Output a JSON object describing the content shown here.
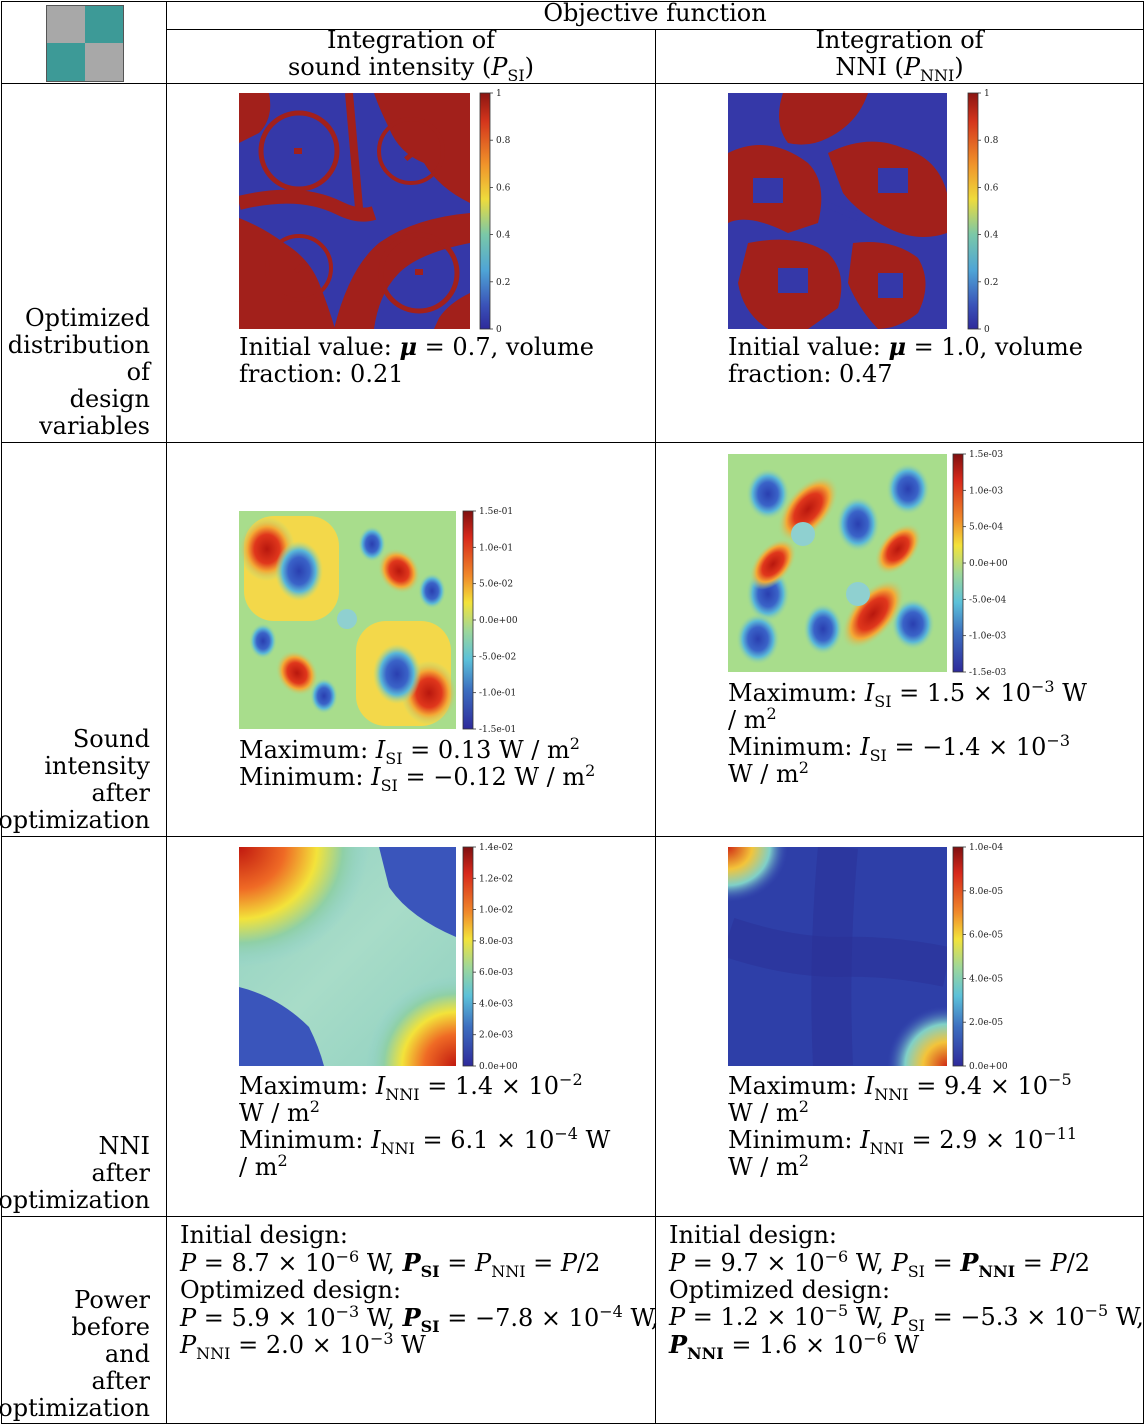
{
  "header": {
    "objective_function": "Objective function",
    "col1_line1": "Integration of",
    "col1_line2": "sound intensity (",
    "col1_sym": "P",
    "col1_sub": "SI",
    "col2_line1": "Integration of",
    "col2_line2": "NNI (",
    "col2_sym": "P",
    "col2_sub": "NNI",
    "close_paren": ")"
  },
  "rows": {
    "r1": [
      "Optimized",
      "distribution",
      "of",
      "design",
      "variables"
    ],
    "r2": [
      "Sound",
      "intensity",
      "after",
      "optimization"
    ],
    "r3": [
      "NNI",
      "after",
      "optimization"
    ],
    "r4": [
      "Power",
      "before",
      "and",
      "after",
      "optimization"
    ]
  },
  "colorbars": {
    "design": [
      "1",
      "0.8",
      "0.6",
      "0.4",
      "0.2",
      "0"
    ],
    "si_left": [
      "1.5e-01",
      "1.0e-01",
      "5.0e-02",
      "0.0e+00",
      "-5.0e-02",
      "-1.0e-01",
      "-1.5e-01"
    ],
    "si_right": [
      "1.5e-03",
      "1.0e-03",
      "5.0e-04",
      "0.0e+00",
      "-5.0e-04",
      "-1.0e-03",
      "-1.5e-03"
    ],
    "nni_left": [
      "1.4e-02",
      "1.2e-02",
      "1.0e-02",
      "8.0e-03",
      "6.0e-03",
      "4.0e-03",
      "2.0e-03",
      "0.0e+00"
    ],
    "nni_right": [
      "1.0e-04",
      "8.0e-05",
      "6.0e-05",
      "4.0e-05",
      "2.0e-05",
      "0.0e+00"
    ]
  },
  "captions": {
    "design_left": [
      "Initial value: μ = 0.7, volume",
      "fraction: 0.21"
    ],
    "design_right": [
      "Initial value: μ = 1.0, volume",
      "fraction: 0.47"
    ],
    "si_left": [
      "Maximum: I_SI = 0.13 W / m²",
      "Minimum: I_SI = −0.12 W / m²"
    ],
    "si_right": [
      "Maximum: I_SI = 1.5 × 10⁻³ W",
      "/ m²",
      "Minimum: I_SI = −1.4 × 10⁻³",
      "W / m²"
    ],
    "nni_left": [
      "Maximum: I_NNI = 1.4 × 10⁻²",
      "W / m²",
      "Minimum: I_NNI = 6.1 × 10⁻⁴ W",
      "/ m²"
    ],
    "nni_right": [
      "Maximum: I_NNI = 9.4 × 10⁻⁵",
      "W / m²",
      "Minimum: I_NNI = 2.9 × 10⁻¹¹",
      "W / m²"
    ],
    "power_left": [
      "Initial design:",
      "P = 8.7 × 10⁻⁶ W, P_SI = P_NNI = P/2",
      "Optimized design:",
      "P = 5.9 × 10⁻³ W, P_SI = −7.8 × 10⁻⁴ W,",
      "P_NNI = 2.0 × 10⁻³ W"
    ],
    "power_right": [
      "Initial design:",
      "P = 9.7 × 10⁻⁶ W, P_SI = P_NNI = P/2",
      "Optimized design:",
      "P = 1.2 × 10⁻⁵ W, P_SI = −5.3 × 10⁻⁵ W,",
      "P_NNI = 1.6 × 10⁻⁶ W"
    ]
  },
  "colors": {
    "teal": "#3d9a97",
    "gray": "#a8a8a8"
  }
}
